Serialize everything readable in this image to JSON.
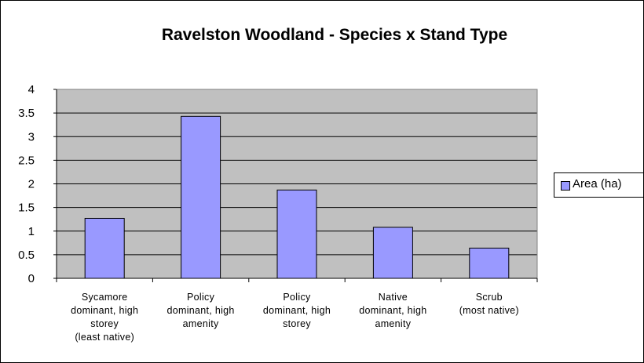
{
  "chart_data": {
    "type": "bar",
    "title": "Ravelston Woodland - Species x Stand Type",
    "xlabel": "",
    "ylabel": "",
    "categories": [
      [
        "Sycamore",
        "dominant, high",
        "storey",
        "(least native)"
      ],
      [
        "Policy",
        "dominant, high",
        "amenity"
      ],
      [
        "Policy",
        "dominant, high",
        "storey"
      ],
      [
        "Native",
        "dominant, high",
        "amenity"
      ],
      [
        "Scrub",
        "(most native)"
      ]
    ],
    "series": [
      {
        "name": "Area (ha)",
        "values": [
          1.27,
          3.43,
          1.87,
          1.08,
          0.64
        ]
      }
    ],
    "ylim": [
      0,
      4
    ],
    "yticks": [
      "0",
      "0.5",
      "1",
      "1.5",
      "2",
      "2.5",
      "3",
      "3.5",
      "4"
    ],
    "grid": true,
    "legend": "right",
    "colors": {
      "bar": "#9999ff",
      "plot_background": "#c0c0c0",
      "grid": "#000000"
    }
  }
}
